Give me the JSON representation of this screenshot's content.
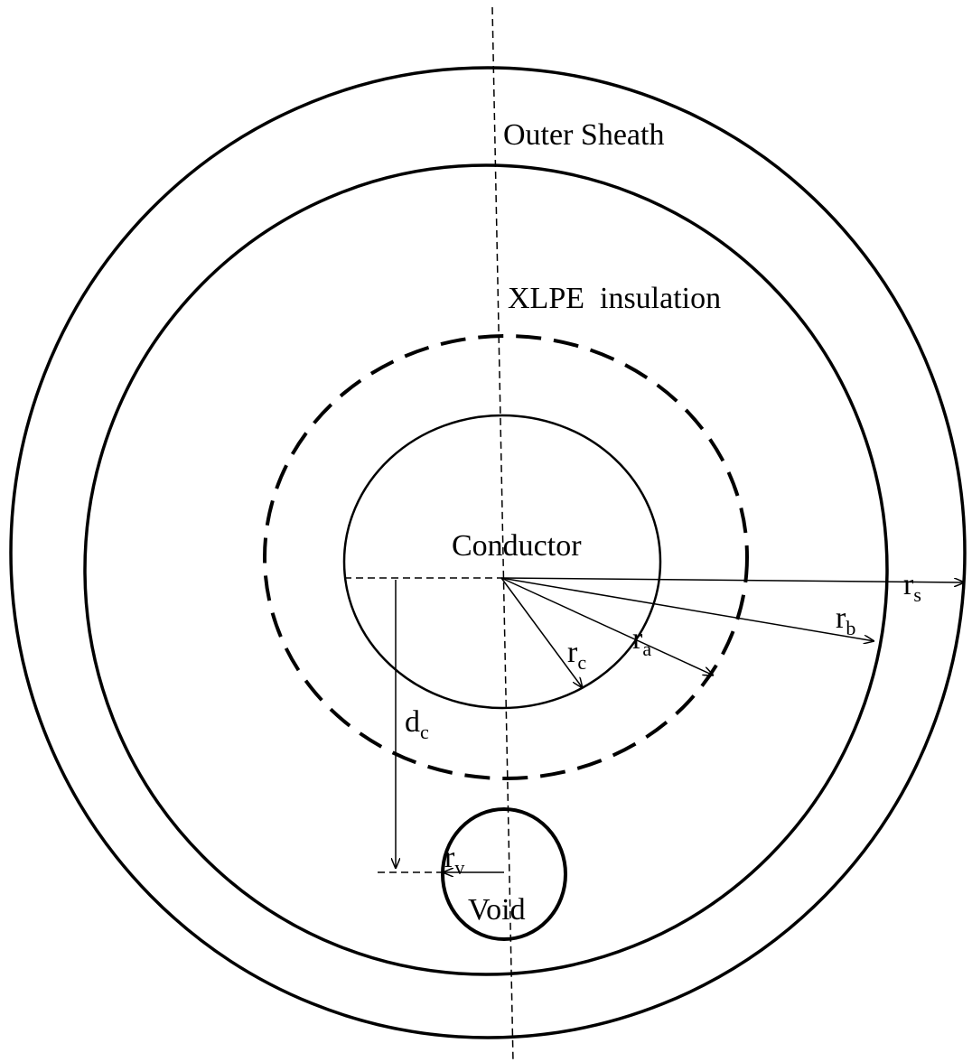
{
  "labels": {
    "outer_sheath": "Outer Sheath",
    "insulation": "XLPE  insulation",
    "conductor": "Conductor",
    "void": "Void"
  },
  "dimensions": [
    {
      "base": "r",
      "sub": "s"
    },
    {
      "base": "r",
      "sub": "b"
    },
    {
      "base": "r",
      "sub": "a"
    },
    {
      "base": "r",
      "sub": "c"
    },
    {
      "base": "d",
      "sub": "c"
    },
    {
      "base": "r",
      "sub": "v"
    }
  ]
}
